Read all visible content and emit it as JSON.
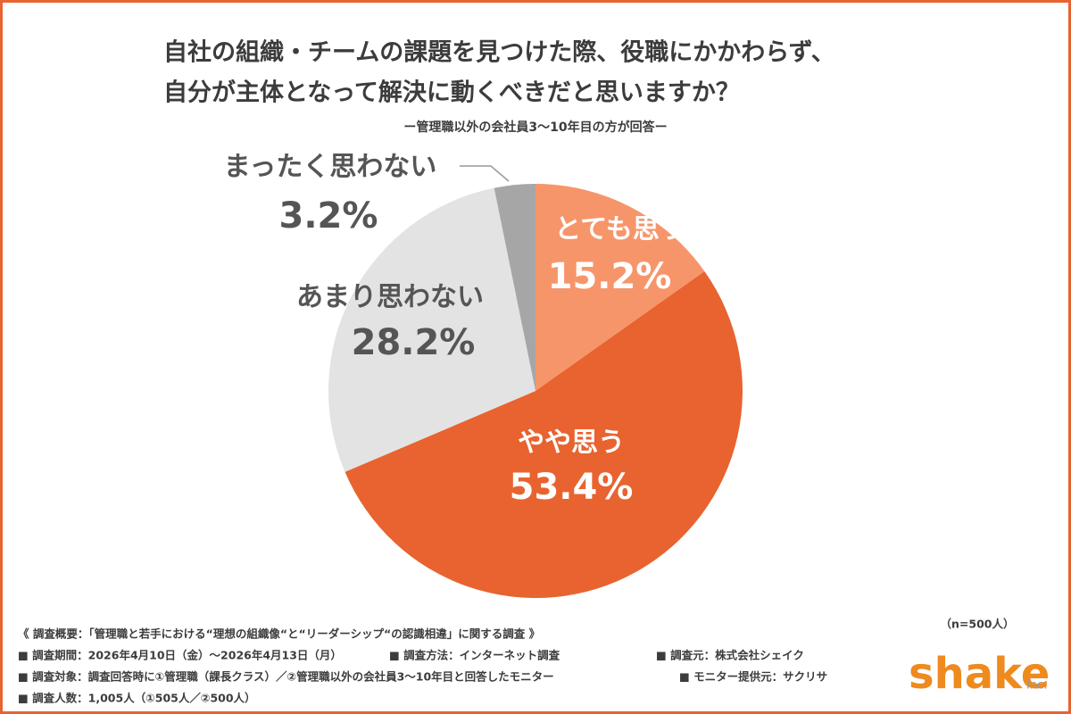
{
  "chart_data": {
    "type": "pie",
    "title_lines": [
      "自社の組織・チームの課題を見つけた際、役職にかかわらず、",
      "自分が主体となって解決に動くべきだと思いますか？"
    ],
    "subtitle": "ー管理職以外の会社員3〜10年目の方が回答ー",
    "categories": [
      "とても思う",
      "やや思う",
      "あまり思わない",
      "まったく思わない"
    ],
    "values": [
      15.2,
      53.4,
      28.2,
      3.2
    ],
    "value_labels": [
      "15.2%",
      "53.4%",
      "28.2%",
      "3.2%"
    ],
    "colors": [
      "#f7956a",
      "#e8632f",
      "#e3e3e3",
      "#a6a6a6"
    ],
    "sample_size": "（n=500人）"
  },
  "footer": {
    "heading": "《 調査概要：「管理職と若手における“理想の組織像“と“リーダーシップ“の認識相違」に関する調査 》",
    "rows": [
      [
        "■ 調査期間：2026年4月10日（金）〜2026年4月13日（月）",
        "■ 調査方法：インターネット調査",
        "■ 調査元：株式会社シェイク"
      ],
      [
        "■ 調査対象：調査回答時に①管理職（課長クラス）／②管理職以外の会社員3〜10年目と回答したモニター",
        "■ モニター提供元：サクリサ"
      ],
      [
        "■ 調査人数：1,005人（①505人／②500人）"
      ]
    ],
    "logo": "shake",
    "logo_suffix": "Inc."
  }
}
